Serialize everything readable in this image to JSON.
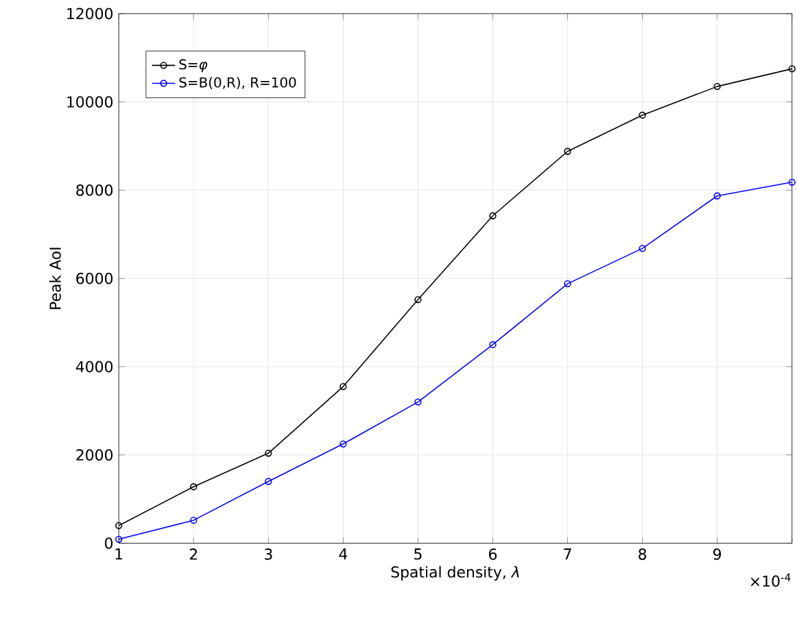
{
  "chart_data": {
    "type": "line",
    "xlabel": "Spatial density, *λ*",
    "ylabel": "Peak AoI",
    "x": [
      1,
      2,
      3,
      4,
      5,
      6,
      7,
      8,
      9,
      10
    ],
    "series": [
      {
        "name": "S=*φ*",
        "color": "#000000",
        "values": [
          400,
          1280,
          2040,
          3550,
          5520,
          7420,
          8880,
          9700,
          10350,
          10750
        ]
      },
      {
        "name": "S=B(0,R), R=100",
        "color": "#0000ff",
        "values": [
          90,
          520,
          1400,
          2250,
          3200,
          4500,
          5880,
          6680,
          7870,
          8180
        ]
      }
    ],
    "xlim": [
      1,
      10
    ],
    "xticks": [
      1,
      2,
      3,
      4,
      5,
      6,
      7,
      8,
      9,
      {
        "value": 10,
        "label": null
      }
    ],
    "ylim": [
      0,
      12000
    ],
    "yticks": [
      0,
      2000,
      4000,
      6000,
      8000,
      10000,
      12000
    ],
    "annotations": [
      "×10$^{-4}$"
    ],
    "grid": true,
    "legend": "top left",
    "marker": "circle",
    "line_style": "solid"
  }
}
